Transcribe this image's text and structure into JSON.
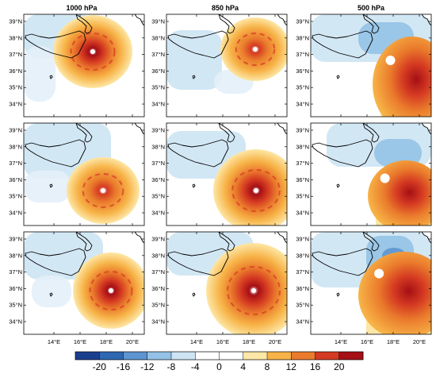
{
  "figure": {
    "column_titles": [
      "1000 hPa",
      "850 hPa",
      "500 hPa"
    ],
    "lat_ticks": [
      "39°N",
      "38°N",
      "37°N",
      "36°N",
      "35°N",
      "34°N"
    ],
    "lon_ticks": [
      "14°E",
      "16°E",
      "18°E",
      "20°E"
    ],
    "colorbar": {
      "labels": [
        "-20",
        "-16",
        "-12",
        "-8",
        "-4",
        "0",
        "4",
        "8",
        "12",
        "16",
        "20"
      ],
      "colors": [
        "#1b3f8f",
        "#2f67b1",
        "#5d95d0",
        "#94c2e6",
        "#cde4f3",
        "#ffffff",
        "#ffffff",
        "#fde7a6",
        "#f7b347",
        "#ea7b2c",
        "#d53a22",
        "#a50f15"
      ]
    },
    "panels": [
      {
        "row": 0,
        "col": 0
      },
      {
        "row": 0,
        "col": 1
      },
      {
        "row": 0,
        "col": 2
      },
      {
        "row": 1,
        "col": 0
      },
      {
        "row": 1,
        "col": 1
      },
      {
        "row": 1,
        "col": 2
      },
      {
        "row": 2,
        "col": 0
      },
      {
        "row": 2,
        "col": 1
      },
      {
        "row": 2,
        "col": 2
      }
    ]
  }
}
